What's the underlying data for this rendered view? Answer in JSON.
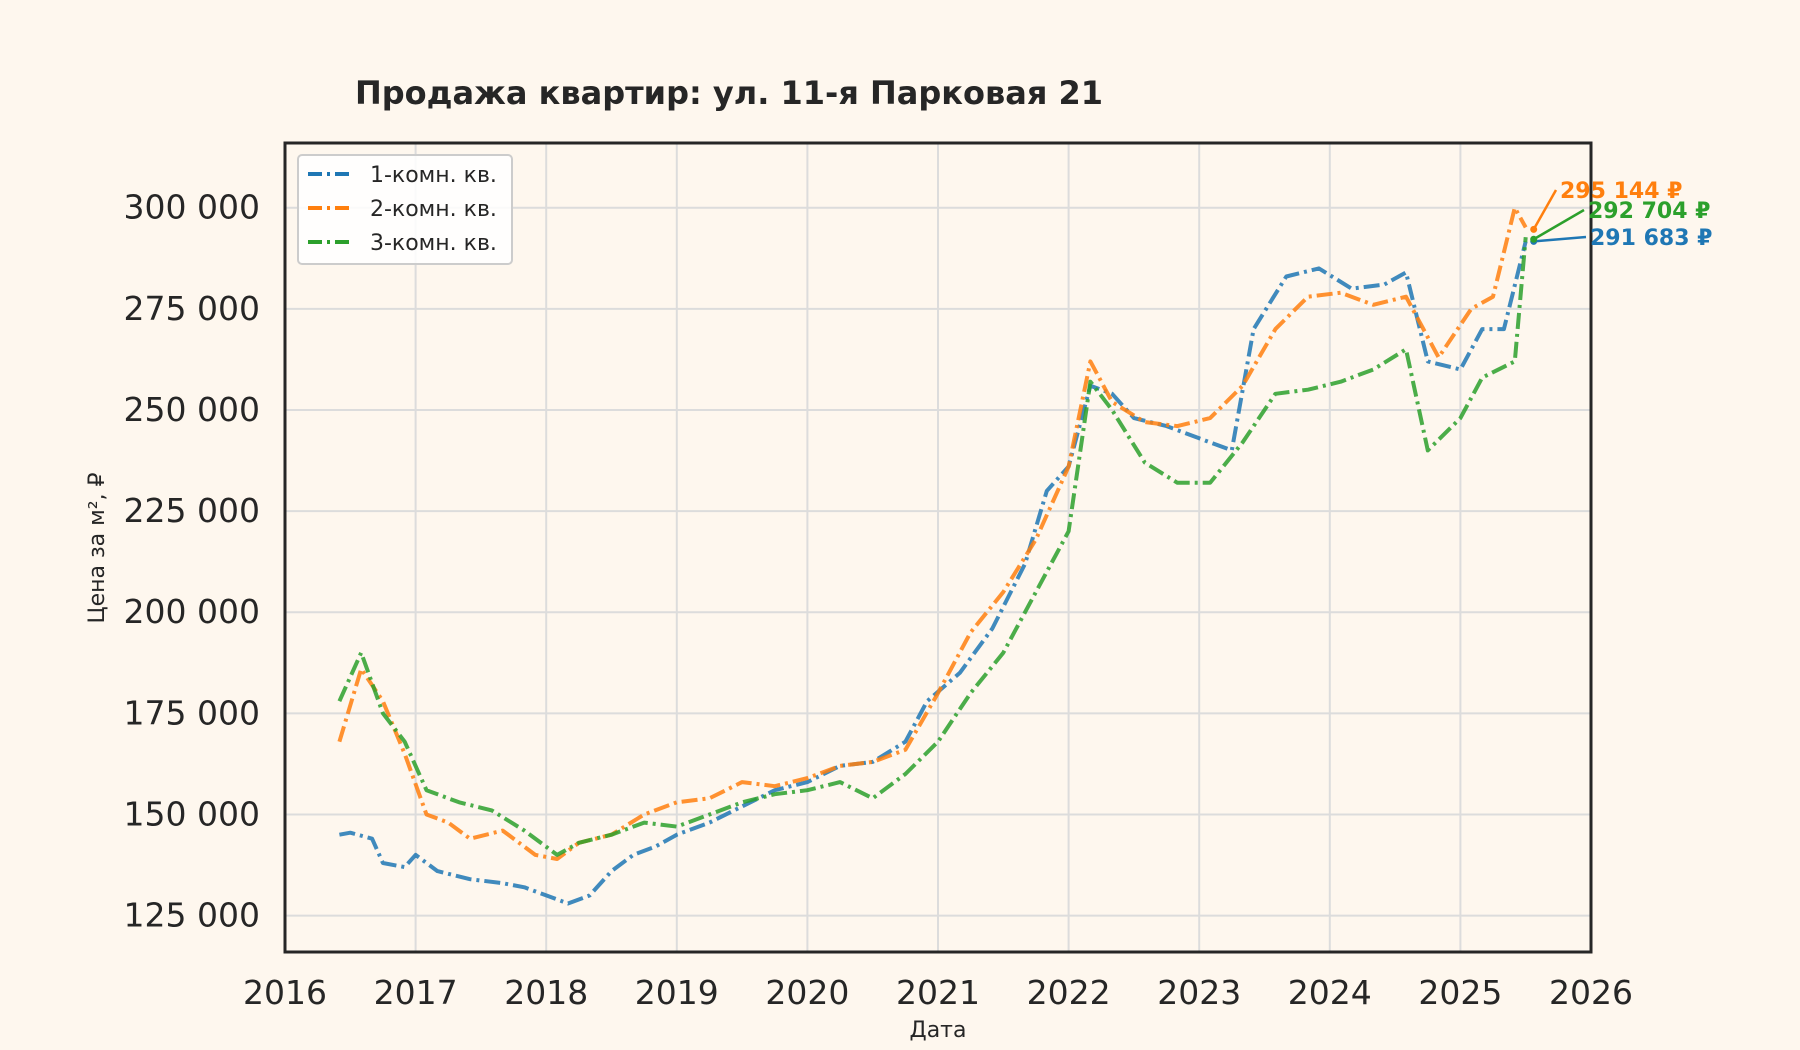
{
  "chart_data": {
    "type": "line",
    "title": "Продажа квартир: ул. 11-я Парковая 21",
    "xlabel": "Дата",
    "ylabel": "Цена за м², ₽",
    "x_ticks": [
      "2016",
      "2017",
      "2018",
      "2019",
      "2020",
      "2021",
      "2022",
      "2023",
      "2024",
      "2025",
      "2026"
    ],
    "y_ticks": [
      "125 000",
      "150 000",
      "175 000",
      "200 000",
      "225 000",
      "250 000",
      "275 000",
      "300 000"
    ],
    "xlim": [
      "2016-01-01",
      "2026-01-01"
    ],
    "ylim": [
      116000,
      316000
    ],
    "grid": true,
    "legend_position": "upper-left",
    "series": [
      {
        "name": "1-комн. кв.",
        "color": "#1f77b4",
        "dash": "dash-dot",
        "end_label": "291 683 ₽",
        "points": [
          [
            "2016-06",
            145000
          ],
          [
            "2016-07",
            145500
          ],
          [
            "2016-09",
            144000
          ],
          [
            "2016-10",
            138000
          ],
          [
            "2016-12",
            137000
          ],
          [
            "2017-01",
            140000
          ],
          [
            "2017-03",
            136000
          ],
          [
            "2017-06",
            134000
          ],
          [
            "2017-09",
            133000
          ],
          [
            "2017-11",
            132000
          ],
          [
            "2018-01",
            130000
          ],
          [
            "2018-03",
            128000
          ],
          [
            "2018-05",
            130000
          ],
          [
            "2018-07",
            136000
          ],
          [
            "2018-09",
            140000
          ],
          [
            "2018-11",
            142000
          ],
          [
            "2019-01",
            145000
          ],
          [
            "2019-04",
            148000
          ],
          [
            "2019-07",
            152000
          ],
          [
            "2019-10",
            156000
          ],
          [
            "2020-01",
            158000
          ],
          [
            "2020-04",
            162000
          ],
          [
            "2020-07",
            163000
          ],
          [
            "2020-10",
            168000
          ],
          [
            "2020-12",
            178000
          ],
          [
            "2021-03",
            185000
          ],
          [
            "2021-06",
            196000
          ],
          [
            "2021-09",
            212000
          ],
          [
            "2021-11",
            230000
          ],
          [
            "2022-01",
            236000
          ],
          [
            "2022-03",
            256000
          ],
          [
            "2022-05",
            254000
          ],
          [
            "2022-07",
            248000
          ],
          [
            "2022-10",
            246000
          ],
          [
            "2023-01",
            243000
          ],
          [
            "2023-04",
            240000
          ],
          [
            "2023-06",
            270000
          ],
          [
            "2023-09",
            283000
          ],
          [
            "2023-12",
            285000
          ],
          [
            "2024-03",
            280000
          ],
          [
            "2024-06",
            281000
          ],
          [
            "2024-08",
            284000
          ],
          [
            "2024-10",
            262000
          ],
          [
            "2025-01",
            260000
          ],
          [
            "2025-03",
            270000
          ],
          [
            "2025-05",
            270000
          ],
          [
            "2025-07",
            291683
          ]
        ]
      },
      {
        "name": "2-комн. кв.",
        "color": "#ff7f0e",
        "dash": "dash-dot",
        "end_label": "295 144 ₽",
        "points": [
          [
            "2016-06",
            168000
          ],
          [
            "2016-08",
            186000
          ],
          [
            "2016-10",
            178000
          ],
          [
            "2016-12",
            165000
          ],
          [
            "2017-02",
            150000
          ],
          [
            "2017-04",
            148000
          ],
          [
            "2017-06",
            144000
          ],
          [
            "2017-09",
            146000
          ],
          [
            "2017-12",
            140000
          ],
          [
            "2018-02",
            139000
          ],
          [
            "2018-04",
            143000
          ],
          [
            "2018-07",
            145000
          ],
          [
            "2018-10",
            150000
          ],
          [
            "2019-01",
            153000
          ],
          [
            "2019-04",
            154000
          ],
          [
            "2019-07",
            158000
          ],
          [
            "2019-10",
            157000
          ],
          [
            "2020-01",
            159000
          ],
          [
            "2020-04",
            162000
          ],
          [
            "2020-07",
            163000
          ],
          [
            "2020-10",
            166000
          ],
          [
            "2021-01",
            180000
          ],
          [
            "2021-04",
            195000
          ],
          [
            "2021-07",
            205000
          ],
          [
            "2021-10",
            218000
          ],
          [
            "2022-01",
            236000
          ],
          [
            "2022-03",
            262000
          ],
          [
            "2022-05",
            252000
          ],
          [
            "2022-08",
            247000
          ],
          [
            "2022-11",
            246000
          ],
          [
            "2023-02",
            248000
          ],
          [
            "2023-05",
            256000
          ],
          [
            "2023-08",
            270000
          ],
          [
            "2023-11",
            278000
          ],
          [
            "2024-02",
            279000
          ],
          [
            "2024-05",
            276000
          ],
          [
            "2024-08",
            278000
          ],
          [
            "2024-11",
            263000
          ],
          [
            "2025-02",
            275000
          ],
          [
            "2025-04",
            278000
          ],
          [
            "2025-06",
            300000
          ],
          [
            "2025-07",
            295144
          ]
        ]
      },
      {
        "name": "3-комн. кв.",
        "color": "#2ca02c",
        "dash": "dash-dot",
        "end_label": "292 704 ₽",
        "points": [
          [
            "2016-06",
            178000
          ],
          [
            "2016-08",
            190000
          ],
          [
            "2016-10",
            175000
          ],
          [
            "2016-12",
            168000
          ],
          [
            "2017-02",
            156000
          ],
          [
            "2017-05",
            153000
          ],
          [
            "2017-08",
            151000
          ],
          [
            "2017-11",
            146000
          ],
          [
            "2018-02",
            140000
          ],
          [
            "2018-04",
            143000
          ],
          [
            "2018-07",
            145000
          ],
          [
            "2018-10",
            148000
          ],
          [
            "2019-01",
            147000
          ],
          [
            "2019-04",
            150000
          ],
          [
            "2019-07",
            153000
          ],
          [
            "2019-10",
            155000
          ],
          [
            "2020-01",
            156000
          ],
          [
            "2020-04",
            158000
          ],
          [
            "2020-07",
            154000
          ],
          [
            "2020-10",
            160000
          ],
          [
            "2021-01",
            168000
          ],
          [
            "2021-04",
            180000
          ],
          [
            "2021-07",
            190000
          ],
          [
            "2021-10",
            205000
          ],
          [
            "2022-01",
            220000
          ],
          [
            "2022-03",
            257000
          ],
          [
            "2022-05",
            250000
          ],
          [
            "2022-08",
            237000
          ],
          [
            "2022-11",
            232000
          ],
          [
            "2023-02",
            232000
          ],
          [
            "2023-05",
            242000
          ],
          [
            "2023-08",
            254000
          ],
          [
            "2023-11",
            255000
          ],
          [
            "2024-02",
            257000
          ],
          [
            "2024-05",
            260000
          ],
          [
            "2024-08",
            265000
          ],
          [
            "2024-10",
            240000
          ],
          [
            "2025-01",
            248000
          ],
          [
            "2025-03",
            258000
          ],
          [
            "2025-06",
            262000
          ],
          [
            "2025-07",
            292704
          ]
        ]
      }
    ]
  }
}
